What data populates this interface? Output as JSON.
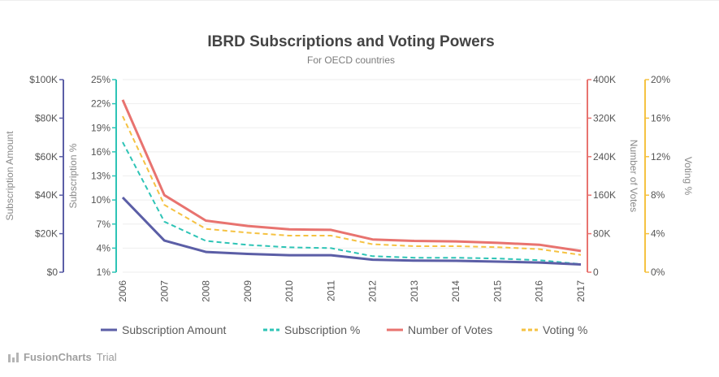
{
  "chart_data": {
    "type": "line",
    "title": "IBRD Subscriptions and Voting Powers",
    "subtitle": "For OECD countries",
    "categories": [
      "2006",
      "2007",
      "2008",
      "2009",
      "2010",
      "2011",
      "2012",
      "2013",
      "2014",
      "2015",
      "2016",
      "2017"
    ],
    "axes": [
      {
        "id": "amount",
        "title": "Subscription Amount",
        "min": 0,
        "max": 100000,
        "ticks": [
          "$0",
          "$20K",
          "$40K",
          "$60K",
          "$80K",
          "$100K"
        ],
        "color": "#5b5ea6"
      },
      {
        "id": "subpct",
        "title": "Subscription %",
        "min": 1,
        "max": 25,
        "ticks": [
          "1%",
          "4%",
          "7%",
          "10%",
          "13%",
          "16%",
          "19%",
          "22%",
          "25%"
        ],
        "color": "#2ec4b6"
      },
      {
        "id": "votes",
        "title": "Number of Votes",
        "min": 0,
        "max": 400000,
        "ticks": [
          "0",
          "80K",
          "160K",
          "240K",
          "320K",
          "400K"
        ],
        "color": "#e8736f"
      },
      {
        "id": "votepct",
        "title": "Voting %",
        "min": 0,
        "max": 20,
        "ticks": [
          "0%",
          "4%",
          "8%",
          "12%",
          "16%",
          "20%"
        ],
        "color": "#f5c242"
      }
    ],
    "series": [
      {
        "name": "Subscription Amount",
        "axis": "amount",
        "color": "#5b5ea6",
        "dashed": false,
        "values": [
          38800,
          16400,
          10500,
          9500,
          8800,
          8800,
          6500,
          6000,
          5900,
          5500,
          5000,
          4000
        ]
      },
      {
        "name": "Subscription %",
        "axis": "subpct",
        "color": "#2ec4b6",
        "dashed": true,
        "values": [
          17.2,
          7.3,
          4.9,
          4.4,
          4.1,
          4.0,
          3.0,
          2.8,
          2.8,
          2.7,
          2.5,
          2.0
        ]
      },
      {
        "name": "Number of Votes",
        "axis": "votes",
        "color": "#e8736f",
        "dashed": false,
        "values": [
          358000,
          160000,
          107000,
          96000,
          89000,
          88000,
          68000,
          65000,
          64000,
          61000,
          57000,
          44000
        ]
      },
      {
        "name": "Voting %",
        "axis": "votepct",
        "color": "#f5c242",
        "dashed": true,
        "values": [
          16.2,
          7.0,
          4.5,
          4.1,
          3.8,
          3.8,
          2.9,
          2.7,
          2.7,
          2.6,
          2.4,
          1.8
        ]
      }
    ],
    "grid": true,
    "legend_position": "bottom"
  },
  "credit": {
    "brand": "FusionCharts",
    "suffix": "Trial"
  }
}
